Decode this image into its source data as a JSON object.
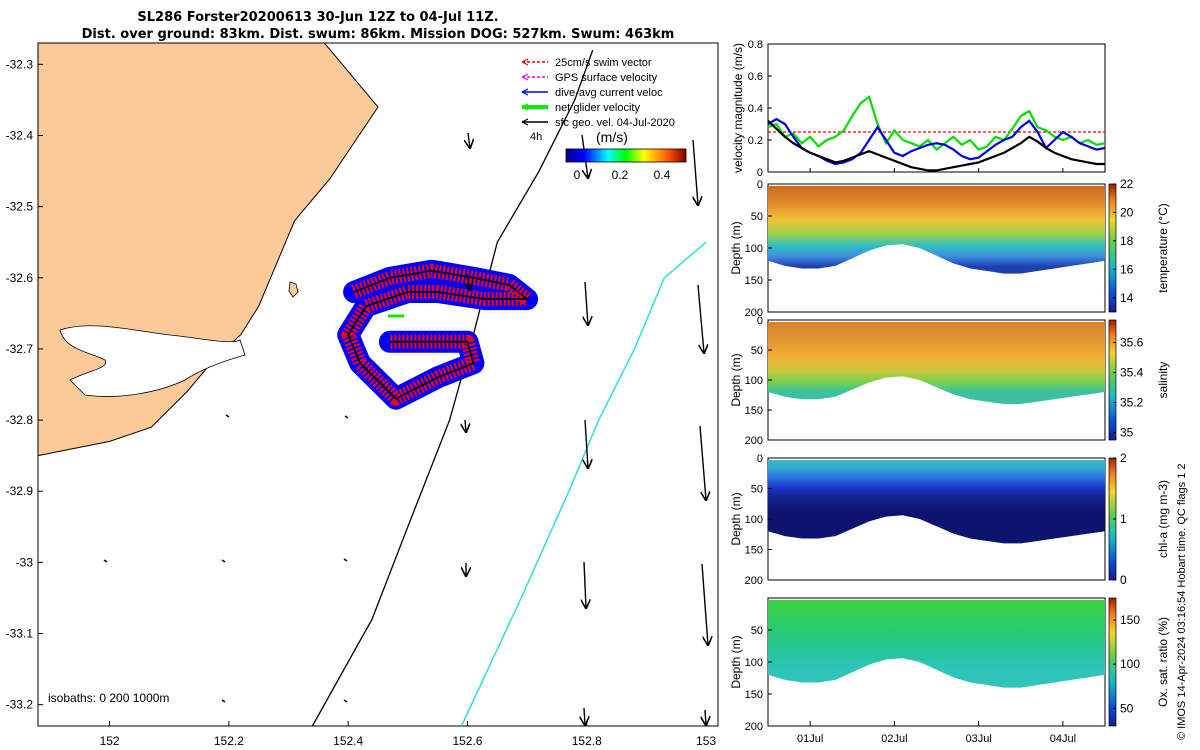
{
  "header": {
    "title_line1": "SL286 Forster20200613 30-Jun 12Z to 04-Jul 11Z.",
    "title_line2": "Dist. over ground: 83km. Dist. swum: 86km. Mission DOG: 527km. Swum: 463km"
  },
  "legend": {
    "items": [
      {
        "label": "25cm/s swim vector",
        "color": "#ff0000",
        "style": "dashed"
      },
      {
        "label": "GPS surface velocity",
        "color": "#ff00ff",
        "style": "dashed"
      },
      {
        "label": "dive-avg current veloc",
        "color": "#0000ff",
        "style": "solid"
      },
      {
        "label": "net glider velocity",
        "color": "#00ee00",
        "style": "thick"
      },
      {
        "label": "sfc geo. vel. 04-Jul-2020",
        "color": "#000000",
        "style": "solid"
      }
    ],
    "time_note": "4h"
  },
  "map_colorbar": {
    "label": "(m/s)",
    "ticks": [
      "0",
      "0.2",
      "0.4"
    ]
  },
  "isobath_label": "isobaths: 0   200  1000m",
  "credit": "© IMOS 14-Apr-2024 03:16:54 Hobart time. QC flags 1  2",
  "colors": {
    "land": "#fcc998",
    "track_red": "#ff0000",
    "track_blue": "#0000ff",
    "isobath_1000": "#33dddd",
    "isobath_200": "#000000"
  },
  "chart_data": [
    {
      "type": "map",
      "x_ticks": [
        "152",
        "152.2",
        "152.4",
        "152.6",
        "152.8",
        "153"
      ],
      "y_ticks": [
        "-32.3",
        "-32.4",
        "-32.5",
        "-32.6",
        "-32.7",
        "-32.8",
        "-32.9",
        "-33",
        "-33.1",
        "-33.2"
      ],
      "xlim": [
        151.88,
        153.02
      ],
      "ylim": [
        -33.23,
        -32.27
      ],
      "coastline": [
        [
          151.88,
          -32.27
        ],
        [
          152.36,
          -32.27
        ],
        [
          152.37,
          -32.28
        ],
        [
          152.42,
          -32.33
        ],
        [
          152.45,
          -32.36
        ],
        [
          152.41,
          -32.41
        ],
        [
          152.37,
          -32.46
        ],
        [
          152.31,
          -32.52
        ],
        [
          152.28,
          -32.58
        ],
        [
          152.25,
          -32.64
        ],
        [
          152.22,
          -32.68
        ],
        [
          152.18,
          -32.71
        ],
        [
          152.13,
          -32.76
        ],
        [
          152.07,
          -32.81
        ],
        [
          152.0,
          -32.83
        ],
        [
          151.88,
          -32.85
        ]
      ],
      "isobath_200": [
        [
          152.34,
          -33.23
        ],
        [
          152.44,
          -33.08
        ],
        [
          152.5,
          -32.95
        ],
        [
          152.57,
          -32.8
        ],
        [
          152.61,
          -32.68
        ],
        [
          152.65,
          -32.55
        ],
        [
          152.72,
          -32.45
        ],
        [
          152.78,
          -32.35
        ],
        [
          152.81,
          -32.28
        ]
      ],
      "isobath_1000": [
        [
          152.59,
          -33.23
        ],
        [
          152.69,
          -33.05
        ],
        [
          152.77,
          -32.9
        ],
        [
          152.82,
          -32.8
        ],
        [
          152.88,
          -32.7
        ],
        [
          152.93,
          -32.6
        ],
        [
          153.0,
          -32.55
        ]
      ],
      "glider_track": [
        [
          152.41,
          -32.62
        ],
        [
          152.47,
          -32.6
        ],
        [
          152.54,
          -32.59
        ],
        [
          152.61,
          -32.6
        ],
        [
          152.67,
          -32.61
        ],
        [
          152.7,
          -32.63
        ],
        [
          152.63,
          -32.63
        ],
        [
          152.55,
          -32.62
        ],
        [
          152.5,
          -32.62
        ],
        [
          152.43,
          -32.64
        ],
        [
          152.4,
          -32.68
        ],
        [
          152.42,
          -32.72
        ],
        [
          152.48,
          -32.77
        ],
        [
          152.55,
          -32.74
        ],
        [
          152.61,
          -32.72
        ],
        [
          152.6,
          -32.69
        ],
        [
          152.53,
          -32.69
        ],
        [
          152.47,
          -32.69
        ]
      ]
    },
    {
      "type": "line",
      "x_ticks": [
        "01Jul",
        "02Jul",
        "03Jul",
        "04Jul"
      ],
      "x": [
        0,
        0.1,
        0.2,
        0.3,
        0.4,
        0.5,
        0.6,
        0.7,
        0.8,
        0.9,
        1.0,
        1.1,
        1.2,
        1.3,
        1.4,
        1.5,
        1.6,
        1.7,
        1.8,
        1.9,
        2.0,
        2.1,
        2.2,
        2.3,
        2.4,
        2.5,
        2.6,
        2.7,
        2.8,
        2.9,
        3.0,
        3.1,
        3.2,
        3.3,
        3.4,
        3.5,
        3.6,
        3.7,
        3.8,
        3.9,
        4.0
      ],
      "xlim": [
        0,
        4.0
      ],
      "ylabel": "velocity magnitude (m/s)",
      "ylim": [
        0,
        0.8
      ],
      "y_ticks": [
        "0",
        "0.2",
        "0.4",
        "0.6",
        "0.8"
      ],
      "series": [
        {
          "color": "#ff0000",
          "values": [
            0.25,
            0.25,
            0.25,
            0.25,
            0.25,
            0.25,
            0.25,
            0.25,
            0.25,
            0.25,
            0.25,
            0.25,
            0.25,
            0.25,
            0.25,
            0.25,
            0.25,
            0.25,
            0.25,
            0.25,
            0.25,
            0.25,
            0.25,
            0.25,
            0.25,
            0.25,
            0.25,
            0.25,
            0.25,
            0.25,
            0.25,
            0.25,
            0.25,
            0.25,
            0.25,
            0.25,
            0.25,
            0.25,
            0.25,
            0.25,
            0.25
          ]
        },
        {
          "color": "#00dd00",
          "values": [
            0.28,
            0.3,
            0.22,
            0.24,
            0.18,
            0.22,
            0.16,
            0.2,
            0.22,
            0.26,
            0.35,
            0.43,
            0.47,
            0.3,
            0.18,
            0.26,
            0.2,
            0.18,
            0.16,
            0.2,
            0.14,
            0.18,
            0.22,
            0.17,
            0.2,
            0.14,
            0.16,
            0.22,
            0.2,
            0.27,
            0.35,
            0.38,
            0.28,
            0.26,
            0.22,
            0.2,
            0.22,
            0.18,
            0.2,
            0.17,
            0.18
          ]
        },
        {
          "color": "#0000dd",
          "values": [
            0.3,
            0.33,
            0.3,
            0.22,
            0.15,
            0.12,
            0.1,
            0.07,
            0.05,
            0.06,
            0.08,
            0.12,
            0.2,
            0.28,
            0.2,
            0.12,
            0.1,
            0.13,
            0.15,
            0.17,
            0.18,
            0.17,
            0.14,
            0.1,
            0.08,
            0.09,
            0.13,
            0.17,
            0.2,
            0.22,
            0.28,
            0.32,
            0.25,
            0.15,
            0.2,
            0.25,
            0.22,
            0.18,
            0.16,
            0.14,
            0.15
          ]
        },
        {
          "color": "#000000",
          "values": [
            0.32,
            0.27,
            0.22,
            0.18,
            0.15,
            0.12,
            0.1,
            0.08,
            0.06,
            0.07,
            0.09,
            0.11,
            0.13,
            0.11,
            0.09,
            0.07,
            0.05,
            0.03,
            0.02,
            0.01,
            0.01,
            0.02,
            0.03,
            0.04,
            0.05,
            0.06,
            0.08,
            0.1,
            0.12,
            0.15,
            0.18,
            0.22,
            0.19,
            0.15,
            0.12,
            0.1,
            0.08,
            0.07,
            0.06,
            0.05,
            0.05
          ]
        }
      ]
    },
    {
      "type": "heatmap",
      "name": "temperature",
      "ylabel": "Depth (m)",
      "cbar_label": "temperature (°C)",
      "clim": [
        13,
        22
      ],
      "cbar_ticks": [
        "14",
        "16",
        "18",
        "20",
        "22"
      ],
      "y_ticks": [
        "0",
        "50",
        "100",
        "150",
        "200"
      ],
      "ylim": [
        0,
        200
      ],
      "cmap": "parula"
    },
    {
      "type": "heatmap",
      "name": "salinity",
      "ylabel": "Depth (m)",
      "cbar_label": "salinity",
      "clim": [
        34.95,
        35.75
      ],
      "cbar_ticks": [
        "35",
        "35.2",
        "35.4",
        "35.6"
      ],
      "y_ticks": [
        "0",
        "50",
        "100",
        "150",
        "200"
      ],
      "ylim": [
        0,
        200
      ],
      "cmap": "parula"
    },
    {
      "type": "heatmap",
      "name": "chl-a",
      "ylabel": "Depth (m)",
      "cbar_label": "chl-a (mg m-3)",
      "clim": [
        0,
        2
      ],
      "cbar_ticks": [
        "0",
        "1",
        "2"
      ],
      "y_ticks": [
        "0",
        "50",
        "100",
        "150",
        "200"
      ],
      "ylim": [
        0,
        200
      ],
      "cmap": "parula"
    },
    {
      "type": "heatmap",
      "name": "oxygen",
      "ylabel": "Depth (m)",
      "cbar_label": "Ox. sat. ratio (%)",
      "clim": [
        30,
        175
      ],
      "cbar_ticks": [
        "50",
        "100",
        "150"
      ],
      "y_ticks": [
        "50",
        "100",
        "150",
        "200"
      ],
      "ylim": [
        0,
        200
      ],
      "cmap": "parula"
    }
  ]
}
